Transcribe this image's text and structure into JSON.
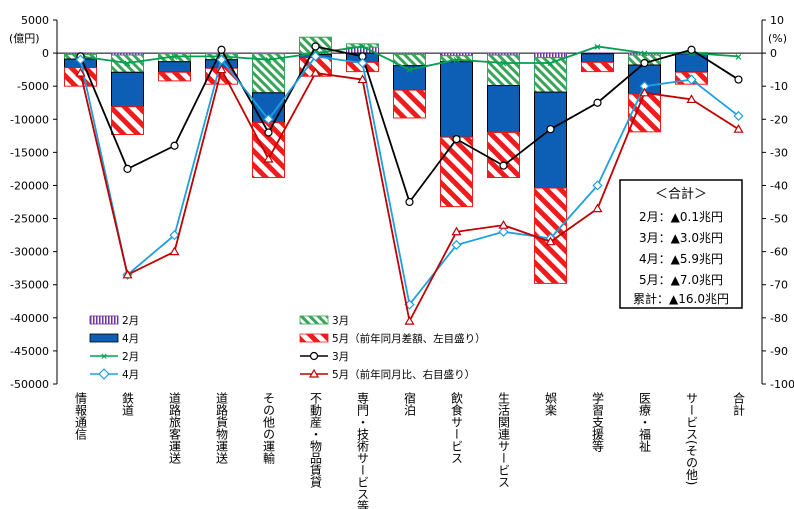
{
  "chart_data": {
    "type": "bar",
    "title": "",
    "left_axis": {
      "unit": "(億円)",
      "min": -50000,
      "max": 5000,
      "step": 5000
    },
    "right_axis": {
      "unit": "(%)",
      "min": -100,
      "max": 10,
      "step": 10
    },
    "categories": [
      "情報通信",
      "鉄道",
      "道路旅客運送",
      "道路貨物運送",
      "その他の運輸",
      "不動産・物品賃貸",
      "専門・技術サービス等",
      "宿泊",
      "飲食サービス",
      "生活関連サービス",
      "娯楽",
      "学習支援等",
      "医療・福祉",
      "サービス(その他)",
      "合計"
    ],
    "bar_series": [
      {
        "name": "2月",
        "pattern": "purple-vstripe",
        "values": [
          -200,
          -300,
          -100,
          -100,
          -100,
          -200,
          900,
          -200,
          -400,
          -300,
          -700,
          -100,
          -300,
          -100,
          0
        ]
      },
      {
        "name": "3月",
        "pattern": "green-diag",
        "values": [
          -700,
          -2600,
          -1200,
          -900,
          -5900,
          2400,
          500,
          -1700,
          -900,
          -4600,
          -5200,
          0,
          -1500,
          100,
          0
        ]
      },
      {
        "name": "4月",
        "pattern": "blue-solid",
        "values": [
          -1300,
          -5200,
          -1600,
          -1300,
          -4500,
          -500,
          -1400,
          -3700,
          -11400,
          -7100,
          -14500,
          -1300,
          -4400,
          -2800,
          0
        ]
      },
      {
        "name": "5月（前年同月差額、左目盛り）",
        "pattern": "red-diag",
        "values": [
          -2800,
          -4200,
          -1300,
          -2400,
          -8300,
          -2800,
          -1400,
          -4200,
          -10500,
          -6800,
          -14400,
          -1400,
          -5700,
          -1800,
          0
        ]
      }
    ],
    "line_series": [
      {
        "name": "2月",
        "color": "#00a050",
        "marker": "x",
        "values": [
          -1,
          -3,
          -1,
          -1,
          -2,
          0,
          2,
          -5,
          -2,
          -3,
          -3,
          2,
          0,
          0,
          -1
        ]
      },
      {
        "name": "3月",
        "color": "#000000",
        "marker": "circle",
        "values": [
          -1,
          -35,
          -28,
          1,
          -24,
          2,
          -1,
          -45,
          -26,
          -34,
          -23,
          -15,
          -3,
          1,
          -8
        ]
      },
      {
        "name": "4月",
        "color": "#1ea0e0",
        "marker": "diamond",
        "values": [
          -2,
          -67,
          -55,
          -2,
          -20,
          -1,
          -3,
          -76,
          -58,
          -54,
          -56,
          -40,
          -10,
          -8,
          -19
        ]
      },
      {
        "name": "5月（前年同月比、右目盛り）",
        "color": "#c00000",
        "marker": "triangle",
        "values": [
          -6,
          -67,
          -60,
          -5,
          -32,
          -6,
          -8,
          -81,
          -54,
          -52,
          -57,
          -47,
          -12,
          -14,
          -23
        ]
      }
    ],
    "summary": {
      "title": "＜合計＞",
      "lines": [
        "2月：▲0.1兆円",
        "3月：▲3.0兆円",
        "4月：▲5.9兆円",
        "5月：▲7.0兆円",
        "累計：▲16.0兆円"
      ]
    },
    "legend_position": "bottom-left"
  }
}
